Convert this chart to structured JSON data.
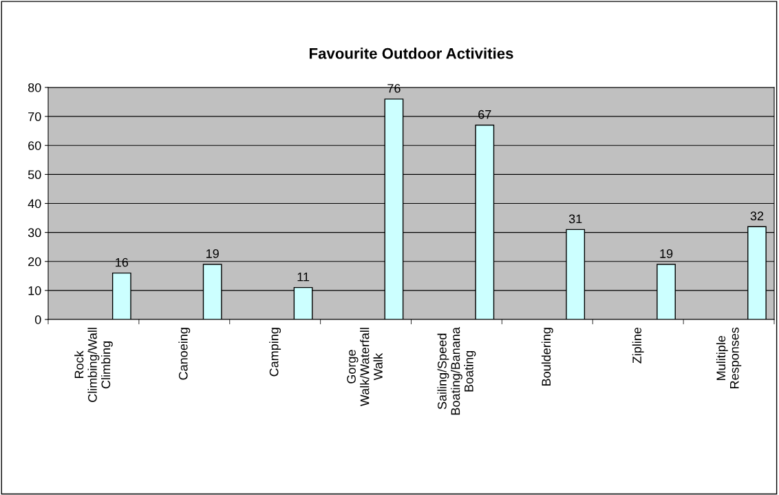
{
  "chart_data": {
    "type": "bar",
    "title": "Favourite Outdoor Activities",
    "categories": [
      "Rock Climbing/Wall Climbing",
      "Canoeing",
      "Camping",
      "Gorge Walk/Waterfall Walk",
      "Sailing/Speed Boating/Banana Boating",
      "Bouldering",
      "Zipline",
      "Mulitiple Responses"
    ],
    "values": [
      16,
      19,
      11,
      76,
      67,
      31,
      19,
      32
    ],
    "color": "#ccffff",
    "ylim": [
      0,
      80
    ],
    "yticks": [
      0,
      10,
      20,
      30,
      40,
      50,
      60,
      70,
      80
    ],
    "grid": "y",
    "data_labels": true
  }
}
